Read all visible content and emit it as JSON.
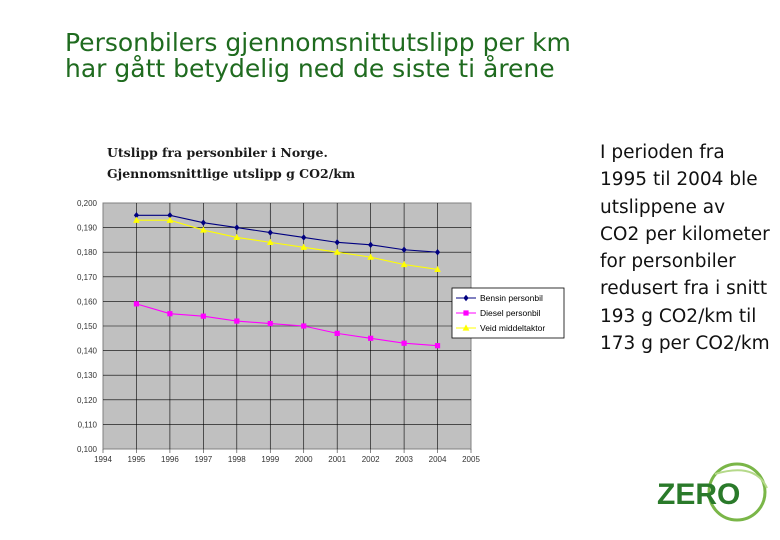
{
  "slide": {
    "title": "Personbilers gjennomsnittutslipp per km har gått betydelig ned de siste ti årene",
    "body": "I perioden fra 1995 til 2004 ble utslippene av CO2 per kilometer for personbiler redusert fra i snitt 193 g CO2/km til 173 g per CO2/km"
  },
  "logo": {
    "text": "ZERO",
    "color": "#2a7a2a",
    "ring_color": "#7ab648"
  },
  "chart_data": {
    "type": "line",
    "title_line1": "Utslipp fra personbiler i Norge.",
    "title_line2": "Gjennomsnittlige utslipp g CO2/km",
    "x": [
      1995,
      1996,
      1997,
      1998,
      1999,
      2000,
      2001,
      2002,
      2003,
      2004
    ],
    "x_tick_labels": [
      "1994",
      "1995",
      "1996",
      "1997",
      "1998",
      "1999",
      "2000",
      "2001",
      "2002",
      "2003",
      "2004",
      "2005"
    ],
    "xlim": [
      1994,
      2005
    ],
    "ylim": [
      0.1,
      0.2
    ],
    "y_tick_labels": [
      "0,200",
      "0,190",
      "0,180",
      "0,170",
      "0,160",
      "0,150",
      "0,140",
      "0,130",
      "0,120",
      "0,110",
      "0,100"
    ],
    "grid": true,
    "legend_position": "right",
    "plot_background": "#c0c0c0",
    "series": [
      {
        "name": "Bensin personbil",
        "color": "#000080",
        "marker": "diamond",
        "values": [
          0.195,
          0.195,
          0.192,
          0.19,
          0.188,
          0.186,
          0.184,
          0.183,
          0.181,
          0.18
        ]
      },
      {
        "name": "Diesel personbil",
        "color": "#ff00ff",
        "marker": "square",
        "values": [
          0.159,
          0.155,
          0.154,
          0.152,
          0.151,
          0.15,
          0.147,
          0.145,
          0.143,
          0.142
        ]
      },
      {
        "name": "Veid middeltaktor",
        "color": "#ffff00",
        "marker": "triangle",
        "values": [
          0.193,
          0.193,
          0.189,
          0.186,
          0.184,
          0.182,
          0.18,
          0.178,
          0.175,
          0.173
        ]
      }
    ]
  }
}
